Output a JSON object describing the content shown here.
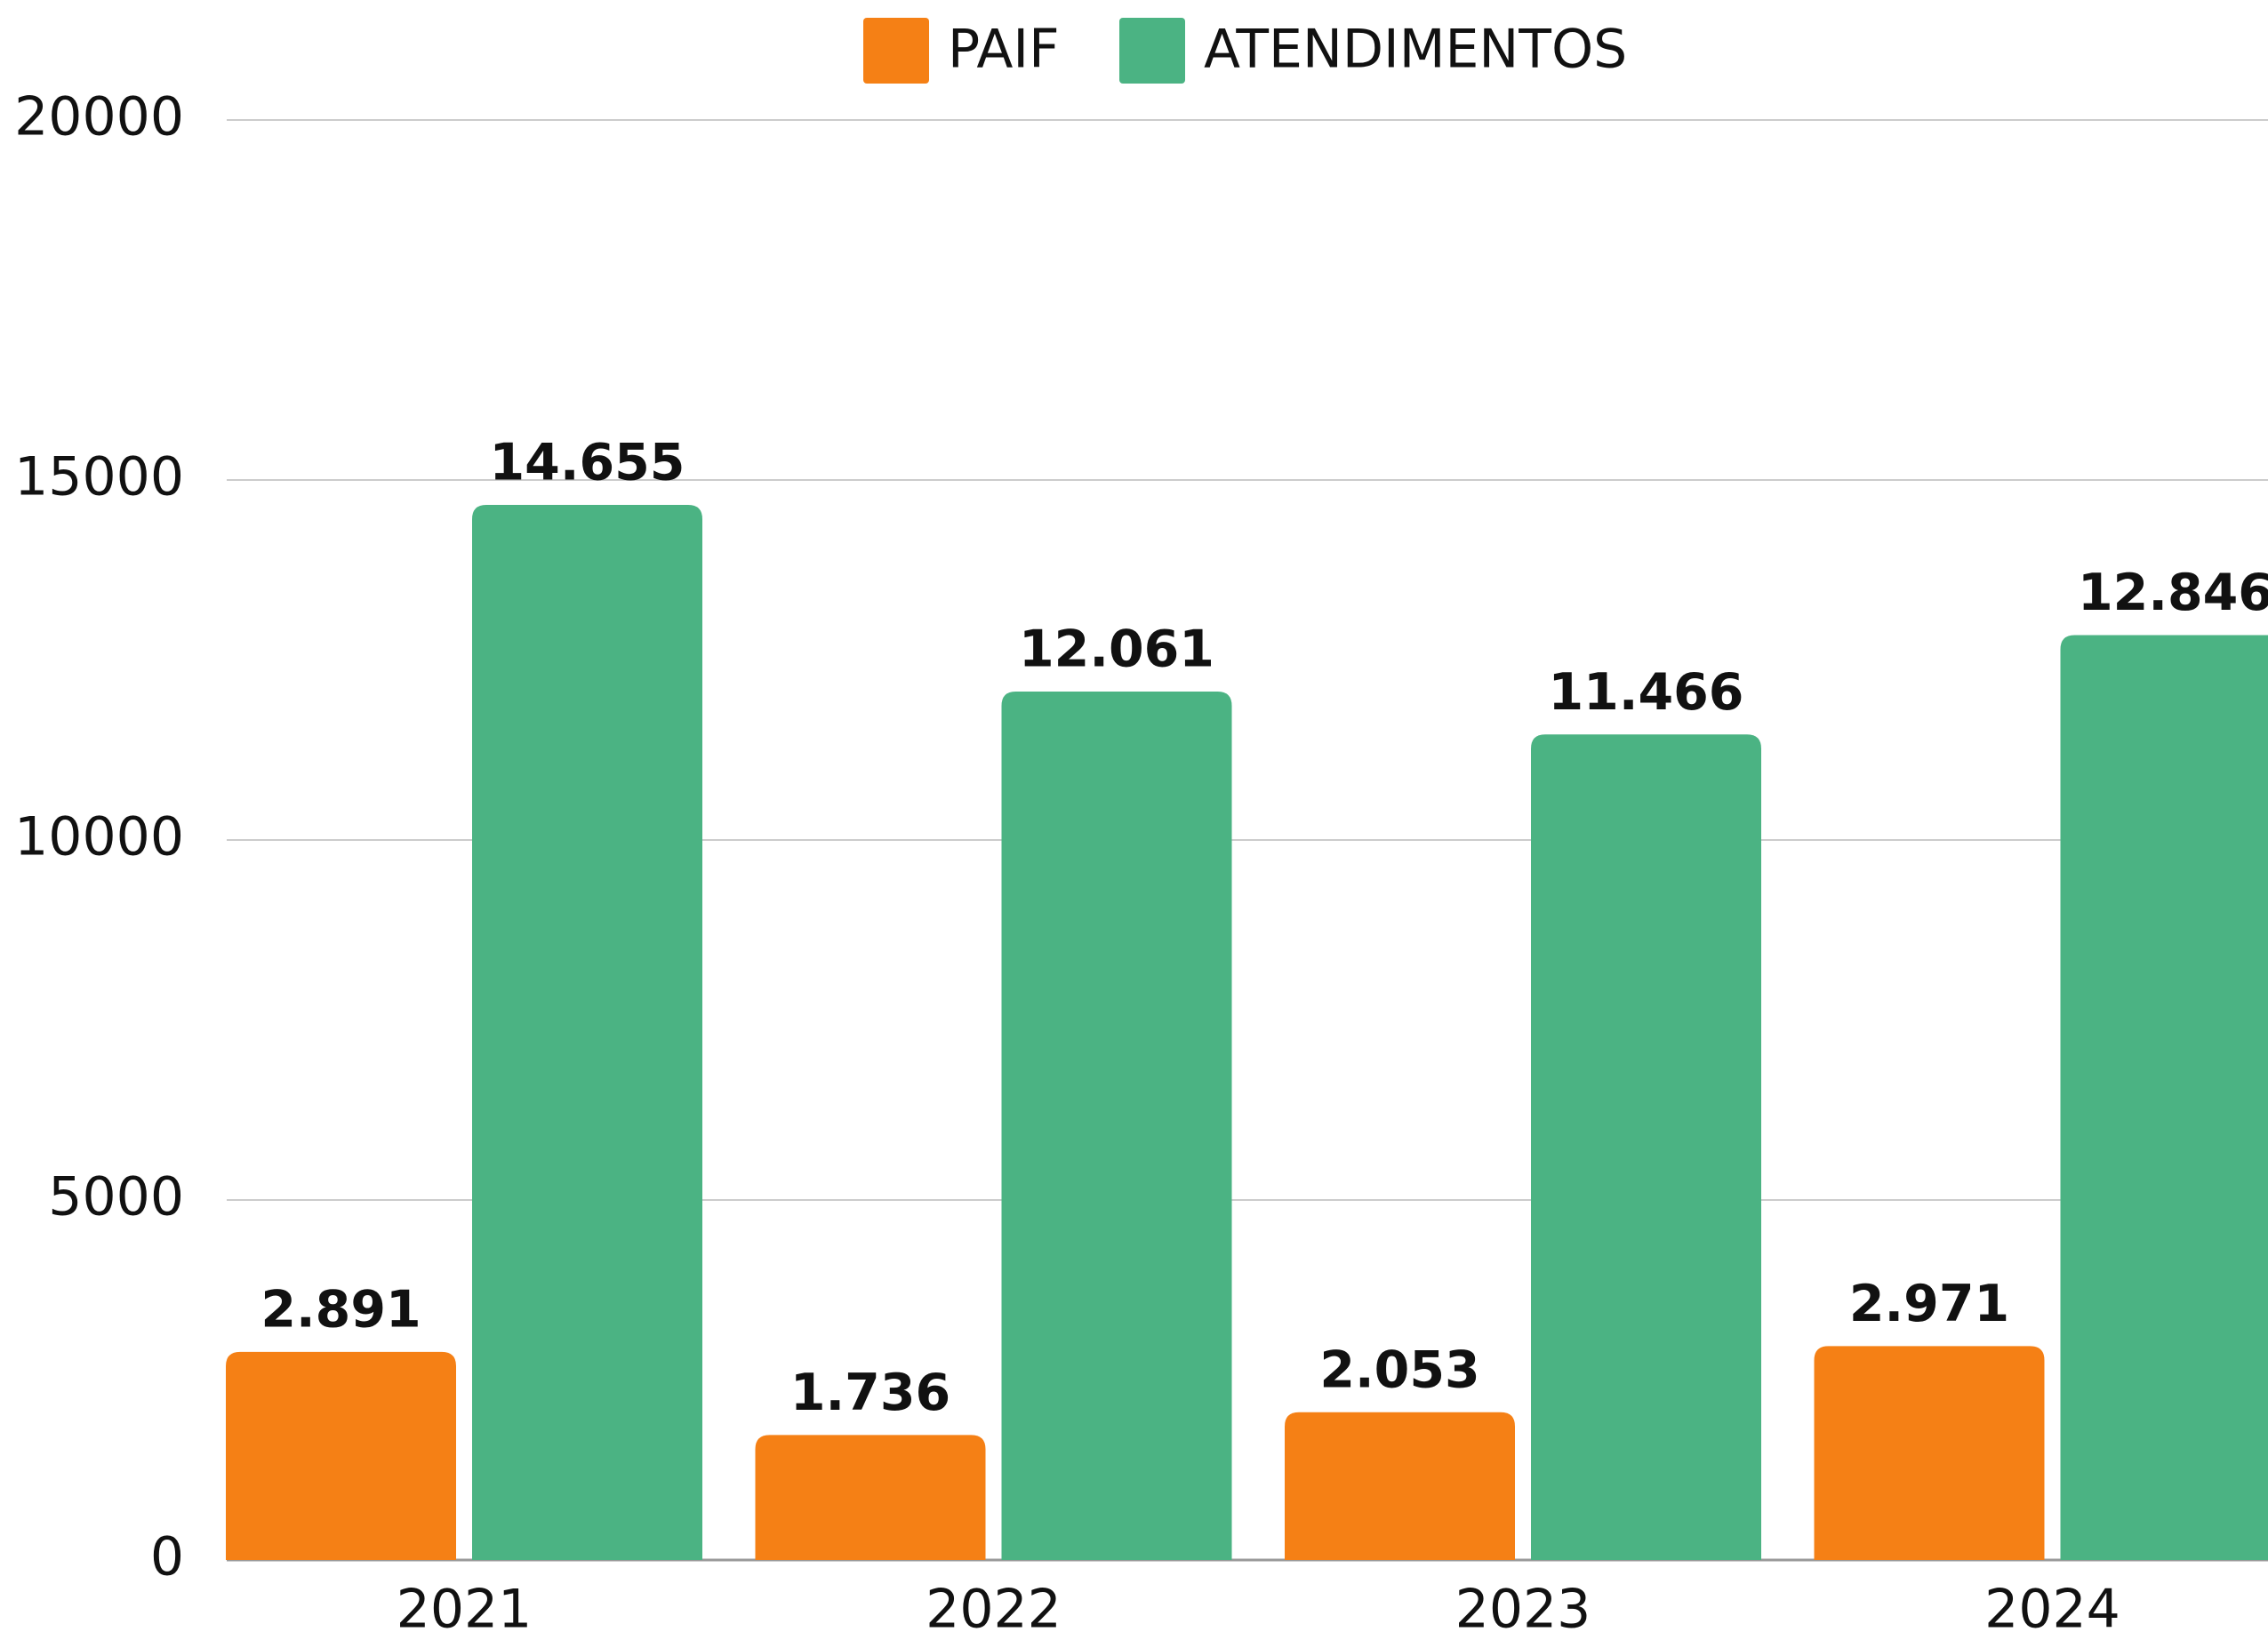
{
  "chart_data": {
    "type": "bar",
    "categories": [
      "2021",
      "2022",
      "2023",
      "2024"
    ],
    "series": [
      {
        "name": "PAIF",
        "color": "#f58015",
        "values": [
          2891,
          1736,
          2053,
          2971
        ],
        "value_labels": [
          "2.891",
          "1.736",
          "2.053",
          "2.971"
        ]
      },
      {
        "name": "ATENDIMENTOS",
        "color": "#4bb383",
        "values": [
          14655,
          12061,
          11466,
          12846
        ],
        "value_labels": [
          "14.655",
          "12.061",
          "11.466",
          "12.846"
        ]
      }
    ],
    "ylim": [
      0,
      20000
    ],
    "yticks": [
      0,
      5000,
      10000,
      15000,
      20000
    ],
    "grid": true,
    "legend": "top"
  }
}
